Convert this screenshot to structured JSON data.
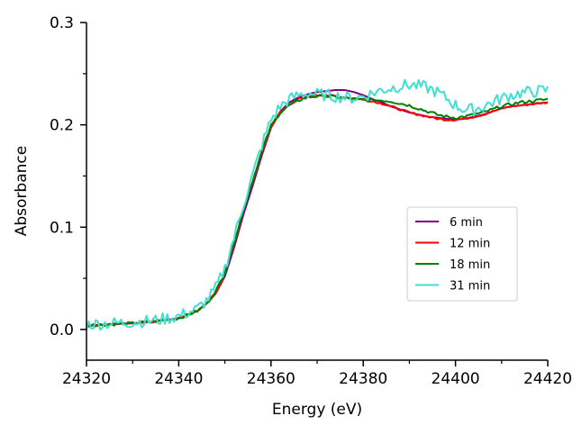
{
  "chart_data": {
    "type": "line",
    "title": "",
    "xlabel": "Energy (eV)",
    "ylabel": "Absorbance",
    "xlim": [
      24320,
      24420
    ],
    "ylim": [
      -0.03,
      0.3
    ],
    "xticks": [
      24320,
      24340,
      24360,
      24380,
      24400,
      24420
    ],
    "xtick_labels": [
      "24320",
      "24340",
      "24360",
      "24380",
      "24400",
      "24420"
    ],
    "yticks": [
      0.0,
      0.1,
      0.2,
      0.3
    ],
    "ytick_labels": [
      "0.0",
      "0.1",
      "0.2",
      "0.3"
    ],
    "grid": false,
    "legend_position": "center-right",
    "x": [
      24320,
      24325,
      24330,
      24335,
      24340,
      24344,
      24346,
      24348,
      24350,
      24352,
      24354,
      24356,
      24358,
      24360,
      24362,
      24364,
      24366,
      24368,
      24370,
      24372,
      24374,
      24376,
      24378,
      24380,
      24382,
      24384,
      24386,
      24388,
      24390,
      24392,
      24394,
      24396,
      24398,
      24400,
      24402,
      24404,
      24406,
      24408,
      24410,
      24412,
      24414,
      24416,
      24418,
      24420
    ],
    "series": [
      {
        "name": "6 min",
        "color": "#800080",
        "values": [
          0.004,
          0.005,
          0.006,
          0.008,
          0.011,
          0.018,
          0.025,
          0.035,
          0.052,
          0.08,
          0.112,
          0.14,
          0.17,
          0.197,
          0.213,
          0.222,
          0.227,
          0.23,
          0.232,
          0.233,
          0.234,
          0.234,
          0.232,
          0.229,
          0.225,
          0.222,
          0.218,
          0.215,
          0.212,
          0.21,
          0.208,
          0.207,
          0.206,
          0.205,
          0.206,
          0.208,
          0.21,
          0.213,
          0.216,
          0.218,
          0.219,
          0.22,
          0.221,
          0.222
        ],
        "noise": 0.0
      },
      {
        "name": "12 min",
        "color": "#ff0000",
        "values": [
          0.004,
          0.005,
          0.006,
          0.008,
          0.011,
          0.018,
          0.025,
          0.036,
          0.055,
          0.084,
          0.116,
          0.144,
          0.173,
          0.198,
          0.212,
          0.22,
          0.225,
          0.228,
          0.229,
          0.229,
          0.228,
          0.227,
          0.226,
          0.225,
          0.223,
          0.221,
          0.218,
          0.215,
          0.212,
          0.21,
          0.208,
          0.206,
          0.205,
          0.205,
          0.206,
          0.208,
          0.21,
          0.213,
          0.216,
          0.218,
          0.219,
          0.22,
          0.221,
          0.222
        ],
        "noise": 0.001
      },
      {
        "name": "18 min",
        "color": "#008000",
        "values": [
          0.004,
          0.005,
          0.006,
          0.008,
          0.011,
          0.018,
          0.025,
          0.037,
          0.056,
          0.085,
          0.117,
          0.145,
          0.174,
          0.199,
          0.212,
          0.219,
          0.224,
          0.227,
          0.228,
          0.228,
          0.227,
          0.226,
          0.225,
          0.224,
          0.224,
          0.224,
          0.223,
          0.221,
          0.219,
          0.216,
          0.213,
          0.21,
          0.208,
          0.207,
          0.208,
          0.21,
          0.212,
          0.215,
          0.218,
          0.22,
          0.222,
          0.223,
          0.224,
          0.225
        ],
        "noise": 0.0015
      },
      {
        "name": "31 min",
        "color": "#40e0d0",
        "values": [
          0.005,
          0.006,
          0.007,
          0.009,
          0.013,
          0.02,
          0.028,
          0.04,
          0.06,
          0.09,
          0.122,
          0.15,
          0.18,
          0.205,
          0.218,
          0.225,
          0.229,
          0.231,
          0.23,
          0.229,
          0.228,
          0.227,
          0.226,
          0.228,
          0.231,
          0.234,
          0.236,
          0.238,
          0.239,
          0.238,
          0.236,
          0.232,
          0.226,
          0.219,
          0.215,
          0.215,
          0.218,
          0.222,
          0.226,
          0.229,
          0.231,
          0.232,
          0.233,
          0.234
        ],
        "noise": 0.006
      }
    ]
  }
}
